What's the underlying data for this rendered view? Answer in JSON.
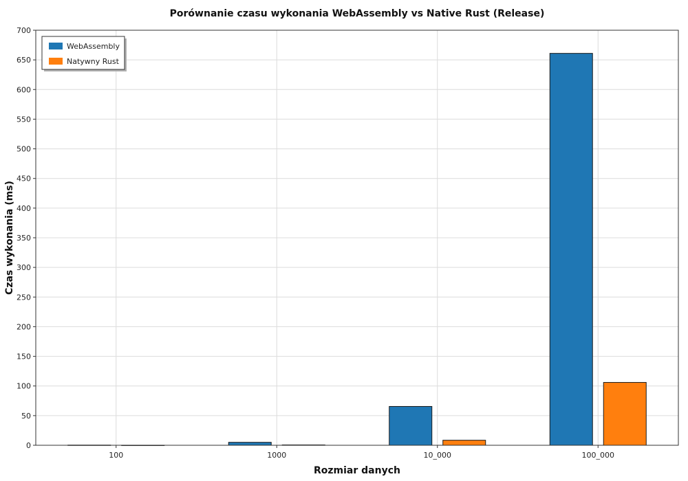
{
  "chart_data": {
    "type": "bar",
    "title": "Porównanie czasu wykonania WebAssembly vs Native Rust (Release)",
    "xlabel": "Rozmiar danych",
    "ylabel": "Czas wykonania (ms)",
    "categories": [
      "100",
      "1000",
      "10_000",
      "100_000"
    ],
    "series": [
      {
        "name": "WebAssembly",
        "color": "#1f77b4",
        "values": [
          0.3,
          5,
          65.5,
          661
        ]
      },
      {
        "name": "Natywny Rust",
        "color": "#ff7f0e",
        "values": [
          0.1,
          0.6,
          8.5,
          106
        ]
      }
    ],
    "ylim": [
      0,
      700
    ],
    "yticks": [
      0,
      50,
      100,
      150,
      200,
      250,
      300,
      350,
      400,
      450,
      500,
      550,
      600,
      650,
      700
    ],
    "grid": true,
    "legend_position": "top-left"
  }
}
